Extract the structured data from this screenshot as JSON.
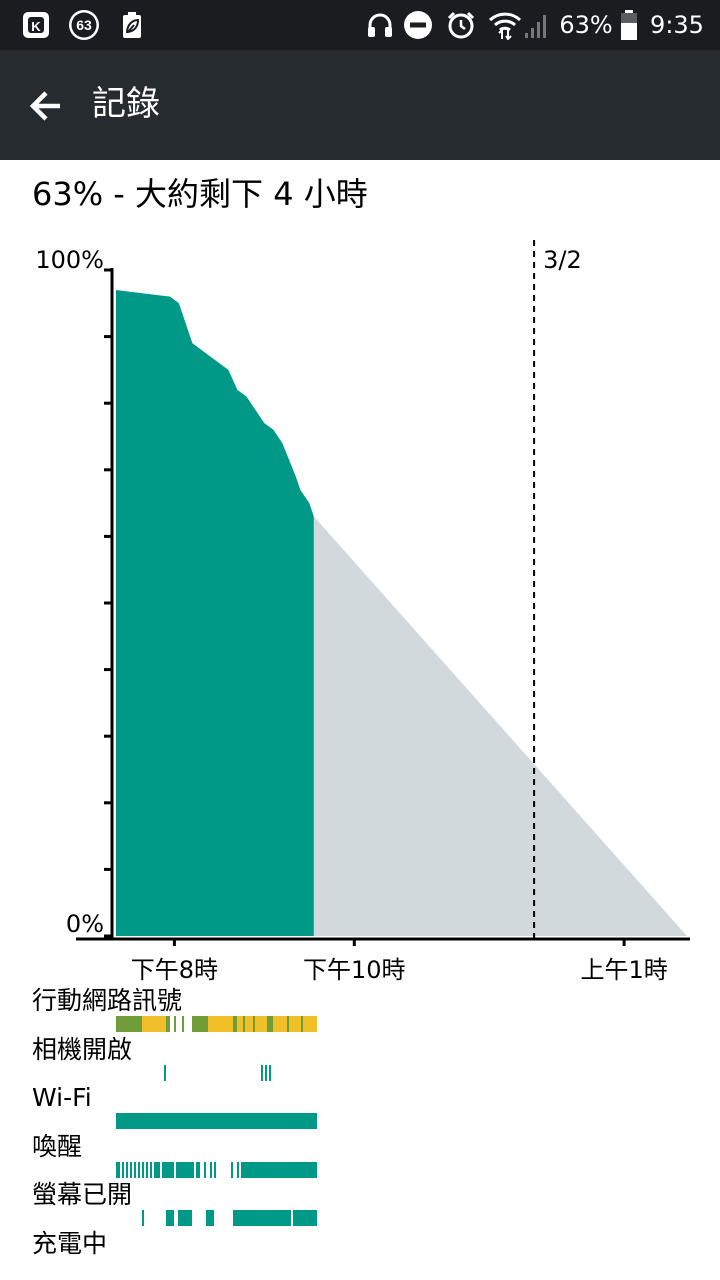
{
  "status_bar": {
    "left_icons": [
      "k-app-icon",
      "notification-count-badge-icon",
      "leaf-battery-icon"
    ],
    "notification_count": "63",
    "right_icons": [
      "headphones-icon",
      "do-not-disturb-icon",
      "alarm-icon",
      "wifi-icon",
      "cell-signal-icon",
      "battery-icon"
    ],
    "battery_percent_text": "63%",
    "battery_level": 0.63,
    "time": "9:35"
  },
  "app_bar": {
    "title": "記錄",
    "back_icon": "back-arrow-icon"
  },
  "summary_text": "63% - 大約剩下 4 小時",
  "chart_data": {
    "type": "area",
    "title": "",
    "xlabel": "",
    "ylabel": "",
    "y_tick_labels": [
      "100%",
      "0%"
    ],
    "ylim": [
      0,
      100
    ],
    "x_tick_labels": [
      "下午8時",
      "下午10時",
      "上午1時"
    ],
    "x_tick_hours": [
      20,
      22,
      25
    ],
    "xlim_hours": [
      19.35,
      25.7
    ],
    "day_marker": {
      "label": "3/2",
      "hour": 24
    },
    "grid": false,
    "legend": "none",
    "series": [
      {
        "kind": "history",
        "color": "#009887",
        "points": [
          [
            19.35,
            97
          ],
          [
            19.95,
            96
          ],
          [
            20.05,
            95
          ],
          [
            20.15,
            91
          ],
          [
            20.2,
            89
          ],
          [
            20.3,
            88
          ],
          [
            20.4,
            87
          ],
          [
            20.6,
            85
          ],
          [
            20.7,
            82
          ],
          [
            20.8,
            81
          ],
          [
            20.9,
            79
          ],
          [
            21.0,
            77
          ],
          [
            21.1,
            76
          ],
          [
            21.2,
            74
          ],
          [
            21.35,
            69
          ],
          [
            21.4,
            67
          ],
          [
            21.5,
            65
          ],
          [
            21.55,
            63
          ]
        ]
      },
      {
        "kind": "projection",
        "color": "#d1d9dd",
        "points": [
          [
            21.55,
            63
          ],
          [
            25.7,
            0
          ]
        ]
      }
    ]
  },
  "usage_rows": [
    {
      "label": "行動網路訊號",
      "segments": [
        [
          0.0,
          0.13,
          "#6e9d3a"
        ],
        [
          0.13,
          0.25,
          "#f0bf2a"
        ],
        [
          0.25,
          0.27,
          "#6e9d3a"
        ],
        [
          0.29,
          0.3,
          "#6e9d3a"
        ],
        [
          0.33,
          0.34,
          "#6e9d3a"
        ],
        [
          0.38,
          0.46,
          "#6e9d3a"
        ],
        [
          0.46,
          0.58,
          "#f0bf2a"
        ],
        [
          0.58,
          0.6,
          "#6e9d3a"
        ],
        [
          0.6,
          0.75,
          "#f0bf2a"
        ],
        [
          0.63,
          0.64,
          "#6e9d3a"
        ],
        [
          0.68,
          0.69,
          "#6e9d3a"
        ],
        [
          0.75,
          0.78,
          "#6e9d3a"
        ],
        [
          0.78,
          1.0,
          "#f0bf2a"
        ],
        [
          0.85,
          0.86,
          "#6e9d3a"
        ],
        [
          0.92,
          0.93,
          "#6e9d3a"
        ]
      ]
    },
    {
      "label": "相機開啟",
      "segments": [
        [
          0.24,
          0.25,
          "#009887"
        ],
        [
          0.72,
          0.73,
          "#009887"
        ],
        [
          0.74,
          0.75,
          "#009887"
        ],
        [
          0.76,
          0.77,
          "#009887"
        ]
      ]
    },
    {
      "label": "Wi-Fi",
      "segments": [
        [
          0.0,
          1.0,
          "#009887"
        ]
      ]
    },
    {
      "label": "喚醒",
      "segments": [
        [
          0.0,
          0.02,
          "#009887"
        ],
        [
          0.03,
          0.04,
          "#009887"
        ],
        [
          0.05,
          0.06,
          "#009887"
        ],
        [
          0.07,
          0.08,
          "#009887"
        ],
        [
          0.09,
          0.1,
          "#009887"
        ],
        [
          0.11,
          0.12,
          "#009887"
        ],
        [
          0.13,
          0.14,
          "#009887"
        ],
        [
          0.15,
          0.16,
          "#009887"
        ],
        [
          0.17,
          0.18,
          "#009887"
        ],
        [
          0.19,
          0.22,
          "#009887"
        ],
        [
          0.23,
          0.29,
          "#009887"
        ],
        [
          0.3,
          0.39,
          "#009887"
        ],
        [
          0.4,
          0.42,
          "#009887"
        ],
        [
          0.44,
          0.45,
          "#009887"
        ],
        [
          0.47,
          0.48,
          "#009887"
        ],
        [
          0.49,
          0.5,
          "#009887"
        ],
        [
          0.57,
          0.58,
          "#009887"
        ],
        [
          0.6,
          0.61,
          "#009887"
        ],
        [
          0.62,
          1.0,
          "#009887"
        ]
      ]
    },
    {
      "label": "螢幕已開",
      "segments": [
        [
          0.13,
          0.14,
          "#009887"
        ],
        [
          0.25,
          0.29,
          "#009887"
        ],
        [
          0.31,
          0.38,
          "#009887"
        ],
        [
          0.45,
          0.49,
          "#009887"
        ],
        [
          0.58,
          0.87,
          "#009887"
        ],
        [
          0.88,
          1.0,
          "#009887"
        ]
      ]
    },
    {
      "label": "充電中",
      "segments": []
    }
  ]
}
